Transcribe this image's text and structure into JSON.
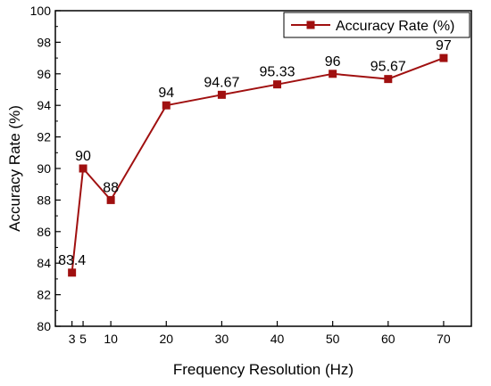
{
  "chart_data": {
    "type": "line",
    "xlabel": "Frequency Resolution (Hz)",
    "ylabel": "Accuracy Rate (%)",
    "xlim": [
      0,
      75
    ],
    "ylim": [
      80,
      100
    ],
    "x_ticks": [
      3,
      5,
      10,
      20,
      30,
      40,
      50,
      60,
      70
    ],
    "y_ticks": [
      80,
      82,
      84,
      86,
      88,
      90,
      92,
      94,
      96,
      98,
      100
    ],
    "legend_position": "top-right",
    "series": [
      {
        "name": "Accuracy Rate (%)",
        "color": "#a01010",
        "marker": "square",
        "x": [
          3,
          5,
          10,
          20,
          30,
          40,
          50,
          60,
          70
        ],
        "y": [
          83.4,
          90,
          88,
          94,
          94.67,
          95.33,
          96,
          95.67,
          97
        ],
        "labels": [
          "83.4",
          "90",
          "88",
          "94",
          "94.67",
          "95.33",
          "96",
          "95.67",
          "97"
        ]
      }
    ]
  }
}
